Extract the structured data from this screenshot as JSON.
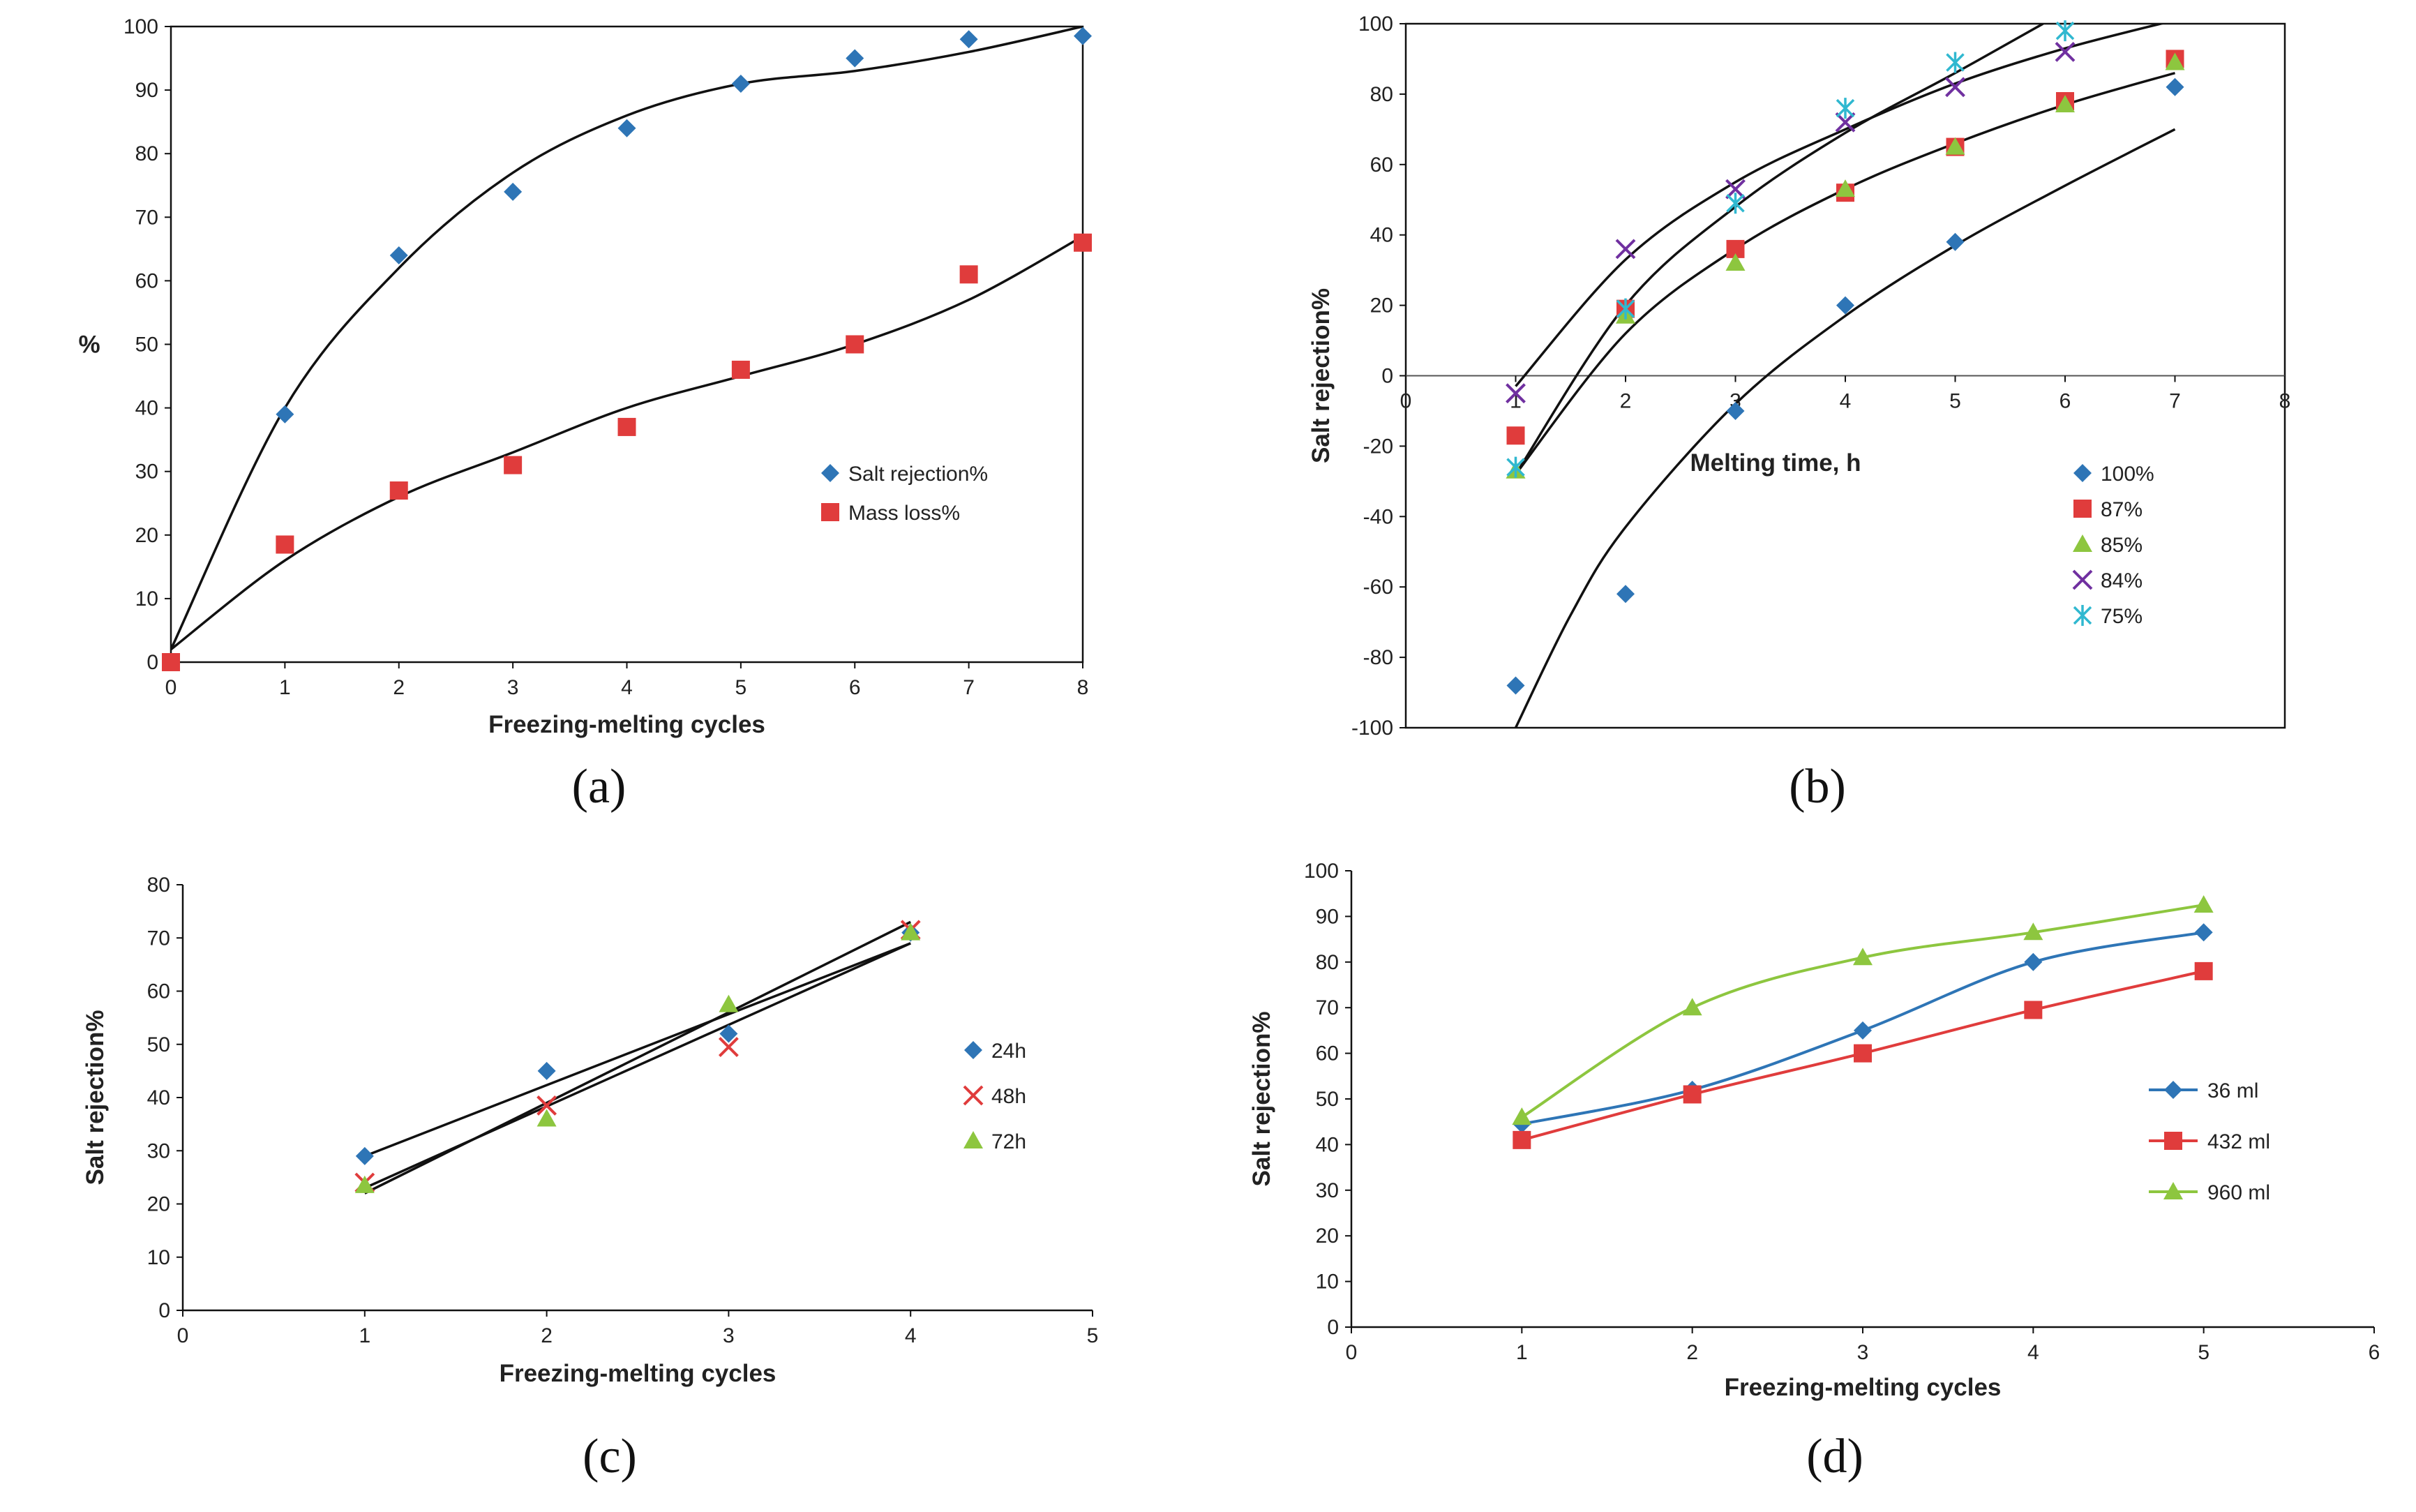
{
  "colors": {
    "blue": "#2e75b6",
    "red": "#e03c3c",
    "green": "#8dc63f",
    "purple": "#7030a0",
    "cyan": "#30b8d0",
    "black": "#111111"
  },
  "chart_data": [
    {
      "id": "a",
      "caption": "(a)",
      "type": "scatter",
      "xlabel": "Freezing-melting cycles",
      "ylabel": "%",
      "xlim": [
        0,
        8
      ],
      "ylim": [
        0,
        100
      ],
      "xstep": 1,
      "ystep": 10,
      "xticks": [
        "0",
        "1",
        "2",
        "3",
        "4",
        "5",
        "6",
        "7",
        "8"
      ],
      "yticks": [
        "0",
        "10",
        "20",
        "30",
        "40",
        "50",
        "60",
        "70",
        "80",
        "90",
        "100"
      ],
      "series": [
        {
          "name": "Salt rejection%",
          "marker": "diamond",
          "color": "#2e75b6",
          "x": [
            1,
            2,
            3,
            4,
            5,
            6,
            7,
            8
          ],
          "y": [
            39,
            64,
            74,
            84,
            91,
            95,
            98,
            98.5
          ],
          "fit": {
            "x": [
              0,
              1,
              2,
              3,
              4,
              5,
              6,
              7,
              8
            ],
            "y": [
              2,
              40,
              62,
              77,
              86,
              91,
              93,
              96,
              100
            ]
          }
        },
        {
          "name": "Mass loss%",
          "marker": "square",
          "color": "#e03c3c",
          "x": [
            0,
            1,
            2,
            3,
            4,
            5,
            6,
            7,
            8
          ],
          "y": [
            0,
            18.5,
            27,
            31,
            37,
            46,
            50,
            61,
            66
          ],
          "fit": {
            "x": [
              0,
              1,
              2,
              3,
              4,
              5,
              6,
              7,
              8
            ],
            "y": [
              2,
              16,
              26,
              33,
              40,
              45,
              50,
              57,
              67
            ]
          }
        }
      ]
    },
    {
      "id": "b",
      "caption": "(b)",
      "type": "scatter",
      "xlabel": "Melting time, h",
      "ylabel": "Salt rejection%",
      "xlim": [
        0,
        8
      ],
      "ylim": [
        -100,
        100
      ],
      "xstep": 1,
      "ystep": 20,
      "xticks": [
        "0",
        "1",
        "2",
        "3",
        "4",
        "5",
        "6",
        "7",
        "8"
      ],
      "yticks": [
        "-100",
        "-80",
        "-60",
        "-40",
        "-20",
        "0",
        "20",
        "40",
        "60",
        "80",
        "100"
      ],
      "series": [
        {
          "name": "100%",
          "marker": "diamond",
          "color": "#2e75b6",
          "x": [
            1,
            2,
            3,
            4,
            5,
            7
          ],
          "y": [
            -88,
            -62,
            -10,
            20,
            38,
            82
          ],
          "fit": {
            "x": [
              1,
              1.5,
              2,
              3,
              4,
              5,
              6,
              7
            ],
            "y": [
              -100,
              -68,
              -43,
              -8,
              17,
              37,
              54,
              70
            ]
          }
        },
        {
          "name": "87%",
          "marker": "square",
          "color": "#e03c3c",
          "x": [
            1,
            2,
            3,
            4,
            5,
            6,
            7
          ],
          "y": [
            -17,
            19,
            36,
            52,
            65,
            78,
            90
          ],
          "fit": {
            "x": [
              1,
              2,
              3,
              4,
              5,
              6,
              7
            ],
            "y": [
              -28,
              12,
              36,
              53,
              66,
              77,
              86
            ]
          }
        },
        {
          "name": "85%",
          "marker": "triangle",
          "color": "#8dc63f",
          "x": [
            1,
            2,
            3,
            4,
            5,
            6,
            7
          ],
          "y": [
            -27,
            17,
            32,
            53,
            65,
            77,
            89
          ]
        },
        {
          "name": "84%",
          "marker": "x",
          "color": "#7030a0",
          "x": [
            1,
            2,
            3,
            4,
            5,
            6
          ],
          "y": [
            -5,
            36,
            53,
            72,
            82,
            92
          ],
          "fit": {
            "x": [
              1,
              2,
              3,
              4,
              5,
              6,
              7
            ],
            "y": [
              -3,
              33,
              55,
              70,
              83,
              93,
              101
            ]
          }
        },
        {
          "name": "75%",
          "marker": "star",
          "color": "#30b8d0",
          "x": [
            1,
            2,
            3,
            4,
            5,
            6
          ],
          "y": [
            -26,
            19,
            49,
            76,
            89,
            98
          ],
          "fit": {
            "x": [
              1,
              2,
              3,
              4,
              5,
              5.8
            ],
            "y": [
              -28,
              20,
              48,
              69,
              86,
              100
            ]
          }
        }
      ]
    },
    {
      "id": "c",
      "caption": "(c)",
      "type": "scatter",
      "xlabel": "Freezing-melting cycles",
      "ylabel": "Salt rejection%",
      "xlim": [
        0,
        5
      ],
      "ylim": [
        0,
        80
      ],
      "xstep": 1,
      "ystep": 10,
      "xticks": [
        "0",
        "1",
        "2",
        "3",
        "4",
        "5"
      ],
      "yticks": [
        "0",
        "10",
        "20",
        "30",
        "40",
        "50",
        "60",
        "70",
        "80"
      ],
      "series": [
        {
          "name": "24h",
          "marker": "diamond",
          "color": "#2e75b6",
          "x": [
            1,
            2,
            3,
            4
          ],
          "y": [
            29,
            45,
            52,
            71
          ],
          "fit": {
            "x": [
              1,
              4
            ],
            "y": [
              29,
              69
            ]
          }
        },
        {
          "name": "48h",
          "marker": "x",
          "color": "#e03c3c",
          "x": [
            1,
            2,
            3,
            4
          ],
          "y": [
            24,
            38.5,
            49.5,
            71.5
          ],
          "fit": {
            "x": [
              1,
              4
            ],
            "y": [
              23,
              69
            ]
          }
        },
        {
          "name": "72h",
          "marker": "triangle",
          "color": "#8dc63f",
          "x": [
            1,
            2,
            3,
            4
          ],
          "y": [
            23.5,
            36,
            57.5,
            71
          ],
          "fit": {
            "x": [
              1,
              4
            ],
            "y": [
              22,
              73
            ]
          }
        }
      ]
    },
    {
      "id": "d",
      "caption": "(d)",
      "type": "line",
      "xlabel": "Freezing-melting cycles",
      "ylabel": "Salt rejection%",
      "xlim": [
        0,
        6
      ],
      "ylim": [
        0,
        100
      ],
      "xstep": 1,
      "ystep": 10,
      "xticks": [
        "0",
        "1",
        "2",
        "3",
        "4",
        "5",
        "6"
      ],
      "yticks": [
        "0",
        "10",
        "20",
        "30",
        "40",
        "50",
        "60",
        "70",
        "80",
        "90",
        "100"
      ],
      "series": [
        {
          "name": "36 ml",
          "marker": "diamond",
          "color": "#2e75b6",
          "x": [
            1,
            2,
            3,
            4,
            5
          ],
          "y": [
            44.5,
            52,
            65,
            80,
            86.5
          ]
        },
        {
          "name": "432 ml",
          "marker": "square",
          "color": "#e03c3c",
          "x": [
            1,
            2,
            3,
            4,
            5
          ],
          "y": [
            41,
            51,
            60,
            69.5,
            78
          ]
        },
        {
          "name": "960 ml",
          "marker": "triangle",
          "color": "#8dc63f",
          "x": [
            1,
            2,
            3,
            4,
            5
          ],
          "y": [
            46,
            70,
            81,
            86.5,
            92.5
          ]
        }
      ]
    }
  ]
}
